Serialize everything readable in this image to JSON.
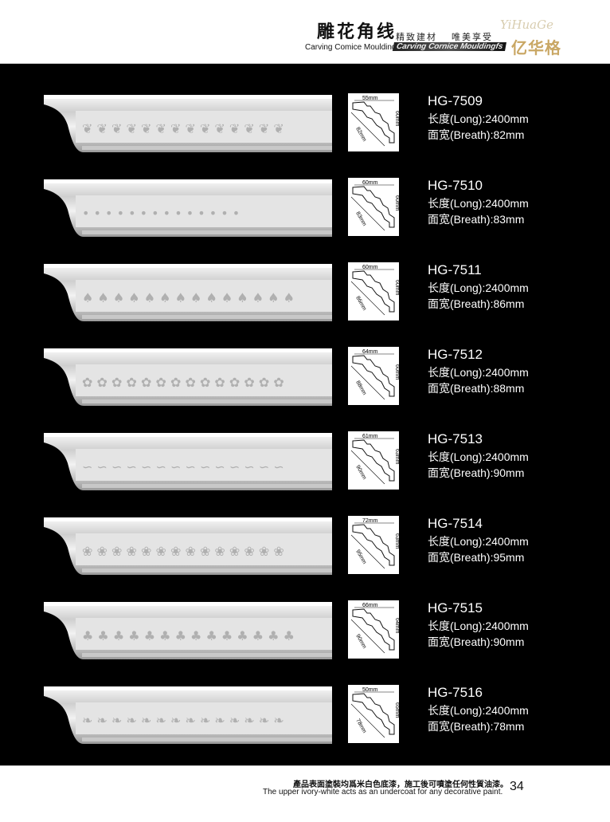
{
  "header": {
    "title_cn": "雕花角线",
    "title_en": "Carving Comice Mouldings",
    "slogan": "精致建材　 唯美享受",
    "title_en2": "Carving Cornice Mouldingfs",
    "logo_script": "YiHuaGe",
    "logo_cn": "亿华格"
  },
  "products": [
    {
      "code": "HG-7509",
      "long": "长度(Long):2400mm",
      "breath": "面宽(Breath):82mm",
      "dims": {
        "top": "55mm",
        "side": "60mm",
        "diag": "82mm"
      },
      "pattern": "vine"
    },
    {
      "code": "HG-7510",
      "long": "长度(Long):2400mm",
      "breath": "面宽(Breath):83mm",
      "dims": {
        "top": "60mm",
        "side": "60mm",
        "diag": "83mm"
      },
      "pattern": "bead"
    },
    {
      "code": "HG-7511",
      "long": "长度(Long):2400mm",
      "breath": "面宽(Breath):86mm",
      "dims": {
        "top": "60mm",
        "side": "60mm",
        "diag": "86mm"
      },
      "pattern": "acanthus"
    },
    {
      "code": "HG-7512",
      "long": "长度(Long):2400mm",
      "breath": "面宽(Breath):88mm",
      "dims": {
        "top": "64mm",
        "side": "60mm",
        "diag": "88mm"
      },
      "pattern": "floral"
    },
    {
      "code": "HG-7513",
      "long": "长度(Long):2400mm",
      "breath": "面宽(Breath):90mm",
      "dims": {
        "top": "61mm",
        "side": "63mm",
        "diag": "90mm"
      },
      "pattern": "scroll"
    },
    {
      "code": "HG-7514",
      "long": "长度(Long):2400mm",
      "breath": "面宽(Breath):95mm",
      "dims": {
        "top": "72mm",
        "side": "63mm",
        "diag": "95mm"
      },
      "pattern": "rosette"
    },
    {
      "code": "HG-7515",
      "long": "长度(Long):2400mm",
      "breath": "面宽(Breath):90mm",
      "dims": {
        "top": "66mm",
        "side": "64mm",
        "diag": "90mm"
      },
      "pattern": "shell"
    },
    {
      "code": "HG-7516",
      "long": "长度(Long):2400mm",
      "breath": "面宽(Breath):78mm",
      "dims": {
        "top": "50mm",
        "side": "65mm",
        "diag": "78mm"
      },
      "pattern": "leaf"
    }
  ],
  "footer": {
    "note_cn": "產品表面塗裝均爲米白色底漆，施工後可噴塗任何性質油漆。",
    "note_en": "The upper ivory-white acts as an undercoat for any decorative paint.",
    "page": "34"
  }
}
